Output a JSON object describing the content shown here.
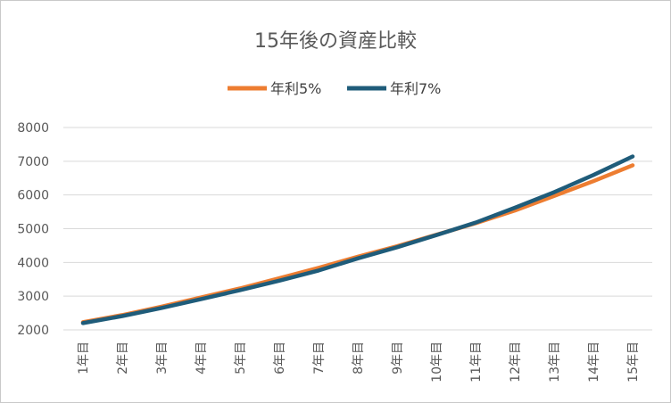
{
  "chart_data": {
    "type": "line",
    "title": "15年後の資産比較",
    "categories": [
      "1年目",
      "2年目",
      "3年目",
      "4年目",
      "5年目",
      "6年目",
      "7年目",
      "8年目",
      "9年目",
      "10年目",
      "11年目",
      "12年目",
      "13年目",
      "14年目",
      "15年目"
    ],
    "series": [
      {
        "name": "年利5%",
        "color": "#ED7D31",
        "values": [
          2230,
          2440,
          2690,
          2960,
          3230,
          3530,
          3840,
          4170,
          4480,
          4820,
          5160,
          5540,
          5970,
          6410,
          6880
        ]
      },
      {
        "name": "年利7%",
        "color": "#1F5C7A",
        "values": [
          2200,
          2410,
          2650,
          2910,
          3180,
          3460,
          3760,
          4120,
          4450,
          4810,
          5180,
          5620,
          6080,
          6590,
          7140
        ]
      }
    ],
    "yticks": [
      2000,
      3000,
      4000,
      5000,
      6000,
      7000,
      8000
    ],
    "ylim": [
      2000,
      8000
    ],
    "legend": "top-center",
    "grid": true
  }
}
